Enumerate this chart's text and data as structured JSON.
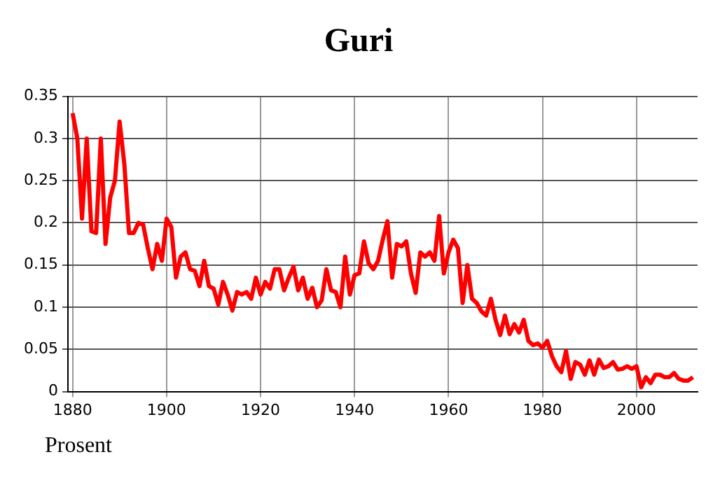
{
  "chart_data": {
    "type": "line",
    "title": "Guri",
    "ylabel": "Prosent",
    "x": [
      1880,
      1881,
      1882,
      1883,
      1884,
      1885,
      1886,
      1887,
      1888,
      1889,
      1890,
      1891,
      1892,
      1893,
      1894,
      1895,
      1896,
      1897,
      1898,
      1899,
      1900,
      1901,
      1902,
      1903,
      1904,
      1905,
      1906,
      1907,
      1908,
      1909,
      1910,
      1911,
      1912,
      1913,
      1914,
      1915,
      1916,
      1917,
      1918,
      1919,
      1920,
      1921,
      1922,
      1923,
      1924,
      1925,
      1926,
      1927,
      1928,
      1929,
      1930,
      1931,
      1932,
      1933,
      1934,
      1935,
      1936,
      1937,
      1938,
      1939,
      1940,
      1941,
      1942,
      1943,
      1944,
      1945,
      1946,
      1947,
      1948,
      1949,
      1950,
      1951,
      1952,
      1953,
      1954,
      1955,
      1956,
      1957,
      1958,
      1959,
      1960,
      1961,
      1962,
      1963,
      1964,
      1965,
      1966,
      1967,
      1968,
      1969,
      1970,
      1971,
      1972,
      1973,
      1974,
      1975,
      1976,
      1977,
      1978,
      1979,
      1980,
      1981,
      1982,
      1983,
      1984,
      1985,
      1986,
      1987,
      1988,
      1989,
      1990,
      1991,
      1992,
      1993,
      1994,
      1995,
      1996,
      1997,
      1998,
      1999,
      2000,
      2001,
      2002,
      2003,
      2004,
      2005,
      2006,
      2007,
      2008,
      2009,
      2010,
      2011,
      2012
    ],
    "series": [
      {
        "color": "#ff0000",
        "values": [
          0.33,
          0.3,
          0.205,
          0.3,
          0.19,
          0.188,
          0.3,
          0.175,
          0.23,
          0.25,
          0.32,
          0.27,
          0.188,
          0.188,
          0.2,
          0.198,
          0.17,
          0.145,
          0.175,
          0.155,
          0.205,
          0.195,
          0.135,
          0.16,
          0.165,
          0.145,
          0.143,
          0.125,
          0.155,
          0.125,
          0.122,
          0.103,
          0.13,
          0.115,
          0.096,
          0.118,
          0.115,
          0.118,
          0.11,
          0.135,
          0.115,
          0.13,
          0.122,
          0.145,
          0.145,
          0.12,
          0.135,
          0.148,
          0.12,
          0.135,
          0.11,
          0.123,
          0.1,
          0.108,
          0.145,
          0.12,
          0.118,
          0.1,
          0.16,
          0.115,
          0.138,
          0.14,
          0.178,
          0.152,
          0.145,
          0.155,
          0.18,
          0.202,
          0.135,
          0.175,
          0.172,
          0.178,
          0.14,
          0.117,
          0.165,
          0.16,
          0.165,
          0.155,
          0.208,
          0.14,
          0.165,
          0.18,
          0.17,
          0.105,
          0.15,
          0.11,
          0.105,
          0.095,
          0.09,
          0.11,
          0.085,
          0.067,
          0.09,
          0.068,
          0.08,
          0.07,
          0.085,
          0.06,
          0.055,
          0.057,
          0.052,
          0.06,
          0.042,
          0.03,
          0.023,
          0.048,
          0.015,
          0.035,
          0.032,
          0.02,
          0.037,
          0.02,
          0.038,
          0.028,
          0.03,
          0.035,
          0.026,
          0.027,
          0.03,
          0.027,
          0.03,
          0.005,
          0.017,
          0.01,
          0.02,
          0.02,
          0.017,
          0.017,
          0.022,
          0.015,
          0.013,
          0.013,
          0.017
        ]
      }
    ],
    "xlim": [
      1879,
      2013
    ],
    "xticks": [
      1880,
      1900,
      1920,
      1940,
      1960,
      1980,
      2000
    ],
    "ylim": [
      0,
      0.35
    ],
    "yticks": [
      0,
      0.05,
      0.1,
      0.15,
      0.2,
      0.25,
      0.3,
      0.35
    ],
    "grid": true,
    "legend": false,
    "marker": "none",
    "line_style": "solid"
  }
}
